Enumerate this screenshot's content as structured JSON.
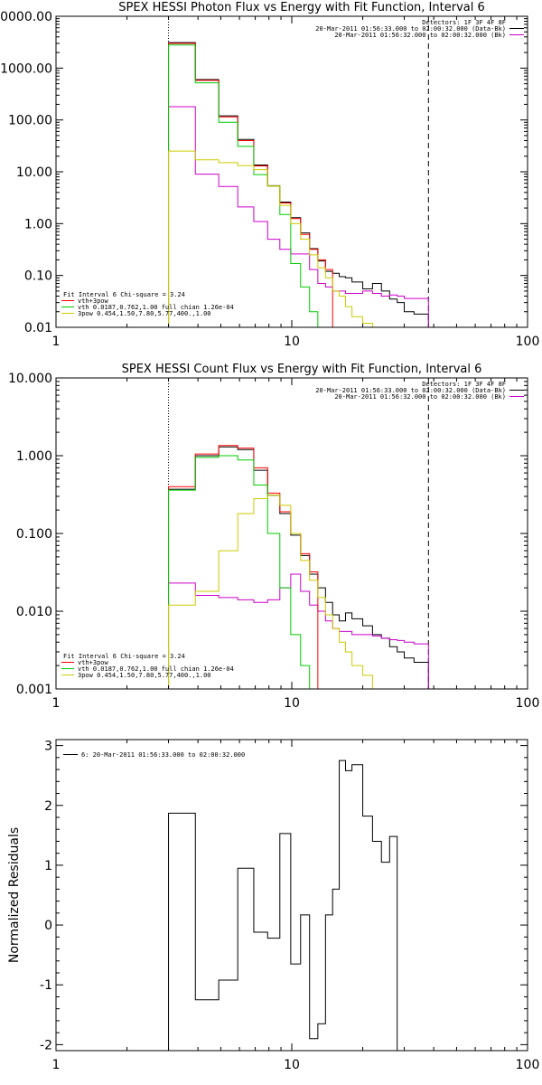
{
  "chart_data": [
    {
      "id": "photon",
      "type": "line",
      "title": "SPEX HESSI Photon Flux vs Energy with Fit Function, Interval 6",
      "x_scale": "log",
      "y_scale": "log",
      "xlim": [
        1,
        100
      ],
      "ylim": [
        0.01,
        10000
      ],
      "x_ticks": [
        1,
        10,
        100
      ],
      "x_tick_labels": [
        "1",
        "10",
        "100"
      ],
      "y_ticks": [
        0.01,
        0.1,
        1,
        10,
        100,
        1000,
        10000
      ],
      "y_tick_labels": [
        "0.01",
        "0.10",
        "1.00",
        "10.00",
        "100.00",
        "1000.00",
        "10000.00"
      ],
      "vlines": [
        {
          "x": 3,
          "style": "dotted"
        },
        {
          "x": 38,
          "style": "dashed"
        }
      ],
      "header_lines": [
        "Detectors: 1F 3F 4F 8F",
        "20-Mar-2011 01:56:33.000 to 02:00:32.000 (Data-Bk)",
        "20-Mar-2011 01:56:32.000 to 02:00:32.000 (Bk)"
      ],
      "header_colors": [
        "",
        "#000000",
        "#cc00cc"
      ],
      "legend_lines": [
        "Fit Interval 6   Chi-square = 3.24",
        "vth+3pow",
        "vth 0.0187,0.762,1.00  full chian 1.26e-04",
        "3pow 0.454,1.50,7.80,5.77,400.,1.00"
      ],
      "legend_colors": [
        "",
        "#ff0000",
        "#00cc00",
        "#cccc00"
      ],
      "energy_edges": [
        3.0,
        3.9,
        4.9,
        5.9,
        6.9,
        7.9,
        8.9,
        9.9,
        10.9,
        11.9,
        12.9,
        13.9,
        14.9,
        15.9,
        16.9,
        18.0,
        20.0,
        22.0,
        24.0,
        26.0,
        28.0,
        30.0,
        33.0,
        38.0
      ],
      "series": [
        {
          "name": "Data-Bk",
          "color": "#000000",
          "values": [
            3100,
            600,
            120,
            42,
            13.5,
            5.4,
            2.6,
            1.3,
            0.66,
            0.33,
            0.19,
            0.12,
            0.11,
            0.095,
            0.09,
            0.075,
            0.055,
            0.07,
            0.05,
            0.035,
            0.03,
            0.02,
            0.018
          ]
        },
        {
          "name": "Bk",
          "color": "#cc00cc",
          "values": [
            180,
            9,
            5.2,
            2.1,
            1.1,
            0.5,
            0.32,
            0.26,
            0.26,
            0.13,
            0.07,
            0.06,
            0.05,
            0.05,
            0.045,
            0.045,
            0.05,
            0.045,
            0.04,
            0.042,
            0.04,
            0.036,
            0.036
          ]
        },
        {
          "name": "vth+3pow",
          "color": "#ff0000",
          "values": [
            3000,
            580,
            115,
            40,
            13,
            5.3,
            2.5,
            1.25,
            0.62,
            0.32,
            0.2,
            0.13
          ]
        },
        {
          "name": "vth",
          "color": "#00cc00",
          "values": [
            2800,
            520,
            90,
            31,
            8.8,
            5.3,
            1.5,
            0.17,
            0.06,
            0.02,
            0.008
          ]
        },
        {
          "name": "3pow",
          "color": "#cccc00",
          "values": [
            25,
            17,
            15,
            13.2,
            11,
            5.3,
            2.25,
            1.0,
            0.5,
            0.25,
            0.14,
            0.09,
            0.05,
            0.04,
            0.025,
            0.016,
            0.012,
            0.009
          ]
        }
      ]
    },
    {
      "id": "count",
      "type": "line",
      "title": "SPEX HESSI Count Flux vs Energy with Fit Function, Interval 6",
      "x_scale": "log",
      "y_scale": "log",
      "xlim": [
        1,
        100
      ],
      "ylim": [
        0.001,
        10
      ],
      "x_ticks": [
        1,
        10,
        100
      ],
      "x_tick_labels": [
        "1",
        "10",
        "100"
      ],
      "y_ticks": [
        0.001,
        0.01,
        0.1,
        1,
        10
      ],
      "y_tick_labels": [
        "0.001",
        "0.010",
        "0.100",
        "1.000",
        "10.000"
      ],
      "vlines": [
        {
          "x": 3,
          "style": "dotted"
        },
        {
          "x": 38,
          "style": "dashed"
        }
      ],
      "header_lines": [
        "Detectors: 1F 3F 4F 8F",
        "20-Mar-2011 01:56:33.000 to 02:00:32.000 (Data-Bk)",
        "20-Mar-2011 01:56:32.000 to 02:00:32.000 (Bk)"
      ],
      "header_colors": [
        "",
        "#000000",
        "#cc00cc"
      ],
      "legend_lines": [
        "Fit Interval 6   Chi-square = 3.24",
        "vth+3pow",
        "vth 0.0187,0.762,1.00  full chian 1.26e-04",
        "3pow 0.454,1.50,7.80,5.77,400.,1.00"
      ],
      "legend_colors": [
        "",
        "#ff0000",
        "#00cc00",
        "#cccc00"
      ],
      "energy_edges": [
        3.0,
        3.9,
        4.9,
        5.9,
        6.9,
        7.9,
        8.9,
        9.9,
        10.9,
        11.9,
        12.9,
        13.9,
        14.9,
        15.9,
        16.9,
        18.0,
        20.0,
        22.0,
        24.0,
        26.0,
        28.0,
        30.0,
        33.0,
        38.0
      ],
      "series": [
        {
          "name": "Data-Bk",
          "color": "#000000",
          "values": [
            0.37,
            1.0,
            1.3,
            1.2,
            0.65,
            0.31,
            0.18,
            0.095,
            0.052,
            0.03,
            0.02,
            0.013,
            0.009,
            0.0075,
            0.0095,
            0.008,
            0.0065,
            0.005,
            0.0045,
            0.0035,
            0.003,
            0.0025,
            0.0022
          ]
        },
        {
          "name": "Bk",
          "color": "#cc00cc",
          "values": [
            0.023,
            0.016,
            0.015,
            0.014,
            0.013,
            0.014,
            0.02,
            0.03,
            0.018,
            0.012,
            0.01,
            0.0075,
            0.006,
            0.0055,
            0.0055,
            0.005,
            0.005,
            0.0048,
            0.0045,
            0.0043,
            0.0042,
            0.004,
            0.0038
          ]
        },
        {
          "name": "vth+3pow",
          "color": "#ff0000",
          "values": [
            0.4,
            1.05,
            1.35,
            1.25,
            0.7,
            0.33,
            0.19,
            0.1,
            0.055,
            0.032
          ]
        },
        {
          "name": "vth",
          "color": "#00cc00",
          "values": [
            0.36,
            0.95,
            1.0,
            0.88,
            0.42,
            0.1,
            0.02,
            0.005,
            0.002,
            0.0009
          ]
        },
        {
          "name": "3pow",
          "color": "#cccc00",
          "values": [
            0.012,
            0.018,
            0.06,
            0.18,
            0.28,
            0.31,
            0.23,
            0.1,
            0.045,
            0.025,
            0.015,
            0.009,
            0.006,
            0.004,
            0.003,
            0.002,
            0.0015,
            0.001
          ]
        }
      ]
    },
    {
      "id": "residuals",
      "type": "line",
      "title": "",
      "x_scale": "log",
      "y_scale": "linear",
      "xlim": [
        1,
        100
      ],
      "ylim": [
        -2.1,
        3.1
      ],
      "x_ticks": [
        1,
        10,
        100
      ],
      "x_tick_labels": [
        "1",
        "10",
        "100"
      ],
      "y_ticks": [
        -2,
        -1,
        0,
        1,
        2,
        3
      ],
      "y_tick_labels": [
        "-2",
        "-1",
        "0",
        "1",
        "2",
        "3"
      ],
      "ylabel": "Normalized Residuals",
      "header_lines": [
        "6: 20-Mar-2011 01:56:33.000 to 02:00:32.000"
      ],
      "energy_edges": [
        3.0,
        3.9,
        4.9,
        5.9,
        6.9,
        7.9,
        8.9,
        9.9,
        10.9,
        11.9,
        12.9,
        13.9,
        14.9,
        15.9,
        16.9,
        18.0,
        20.0,
        22.0,
        24.0,
        26.0,
        28.0,
        30.0,
        33.0,
        38.0
      ],
      "series": [
        {
          "name": "6: 20-Mar-2011 01:56:33.000 to 02:00:32.000",
          "color": "#000000",
          "values": [
            1.87,
            -1.25,
            -0.92,
            0.95,
            -0.12,
            -0.22,
            1.53,
            -0.65,
            0.17,
            -1.9,
            -1.65,
            0.17,
            0.6,
            2.75,
            2.58,
            2.68,
            1.82,
            1.4,
            1.05,
            1.48
          ]
        }
      ]
    }
  ]
}
